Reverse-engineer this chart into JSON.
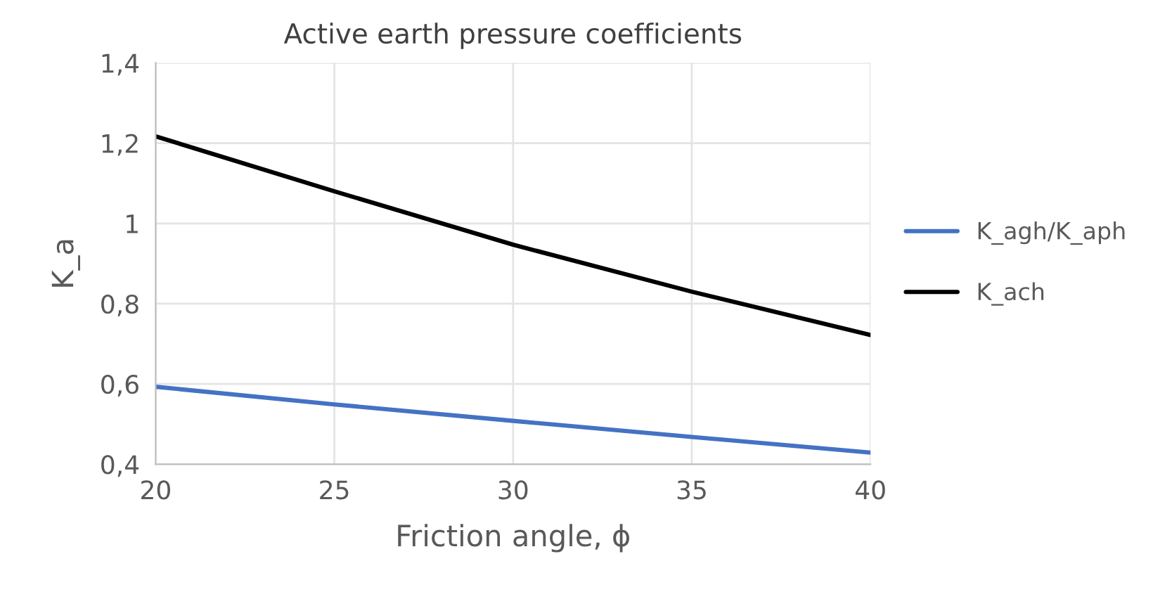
{
  "chart_data": {
    "type": "line",
    "title": "Active earth pressure coefficients",
    "xlabel": "Friction angle, ϕ",
    "ylabel": "K_a",
    "x": [
      20,
      25,
      30,
      35,
      40
    ],
    "series": [
      {
        "name": "K_agh/K_aph",
        "color": "#4472c4",
        "values": [
          0.593,
          0.549,
          0.508,
          0.468,
          0.429
        ]
      },
      {
        "name": "K_ach",
        "color": "#000000",
        "values": [
          1.217,
          1.08,
          0.947,
          0.83,
          0.722
        ]
      }
    ],
    "xlim": [
      20,
      40
    ],
    "xticks": [
      20,
      25,
      30,
      35,
      40
    ],
    "ylim": [
      0.4,
      1.4
    ],
    "yticks": [
      {
        "value": 0.4,
        "label": "0,4"
      },
      {
        "value": 0.6,
        "label": "0,6"
      },
      {
        "value": 0.8,
        "label": "0,8"
      },
      {
        "value": 1,
        "label": "1"
      },
      {
        "value": 1.2,
        "label": "1,2"
      },
      {
        "value": 1.4,
        "label": "1,4"
      }
    ],
    "grid": true,
    "legend": "right",
    "marker": "none",
    "line_style": "solid"
  }
}
